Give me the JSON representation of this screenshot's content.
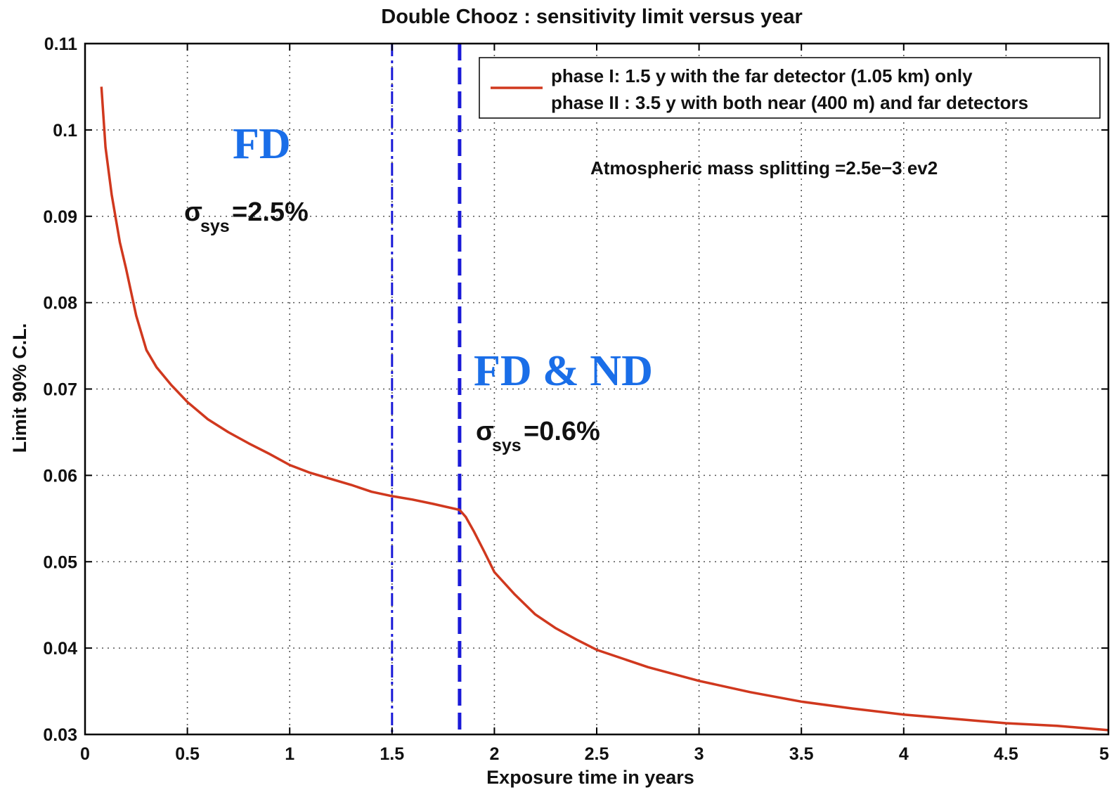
{
  "colors": {
    "curve": "#d0381e",
    "marker": "#1a1ad8",
    "label": "#1a6ee8",
    "grid": "#555555",
    "axis": "#000000"
  },
  "chart_data": {
    "type": "line",
    "title": "Double Chooz : sensitivity limit versus year",
    "xlabel": "Exposure time in years",
    "ylabel": "Limit 90% C.L.",
    "xlim": [
      0,
      5
    ],
    "ylim": [
      0.03,
      0.11
    ],
    "grid": true,
    "legend_position": "top-right",
    "xticks": [
      0,
      0.5,
      1,
      1.5,
      2,
      2.5,
      3,
      3.5,
      4,
      4.5,
      5
    ],
    "xtick_labels": [
      "0",
      "0.5",
      "1",
      "1.5",
      "2",
      "2.5",
      "3",
      "3.5",
      "4",
      "4.5",
      "5"
    ],
    "yticks": [
      0.03,
      0.04,
      0.05,
      0.06,
      0.07,
      0.08,
      0.09,
      0.1,
      0.11
    ],
    "ytick_labels": [
      "0.03",
      "0.04",
      "0.05",
      "0.06",
      "0.07",
      "0.08",
      "0.09",
      "0.1",
      "0.11"
    ],
    "series": [
      {
        "legend_lines": [
          "phase I: 1.5 y with the far detector (1.05 km) only",
          "phase II : 3.5 y with both near (400 m) and far detectors"
        ],
        "x": [
          0.08,
          0.1,
          0.13,
          0.17,
          0.2,
          0.25,
          0.3,
          0.35,
          0.42,
          0.5,
          0.6,
          0.7,
          0.8,
          0.9,
          1.0,
          1.1,
          1.2,
          1.3,
          1.4,
          1.5,
          1.6,
          1.7,
          1.83,
          1.86,
          1.9,
          1.95,
          2.0,
          2.1,
          2.2,
          2.3,
          2.4,
          2.5,
          2.75,
          3.0,
          3.25,
          3.5,
          3.75,
          4.0,
          4.25,
          4.5,
          4.75,
          5.0
        ],
        "y": [
          0.105,
          0.098,
          0.0925,
          0.087,
          0.084,
          0.0785,
          0.0745,
          0.0725,
          0.0705,
          0.0685,
          0.0665,
          0.065,
          0.0637,
          0.0625,
          0.0612,
          0.0603,
          0.0596,
          0.0589,
          0.0581,
          0.0576,
          0.0572,
          0.0567,
          0.056,
          0.0552,
          0.0535,
          0.0512,
          0.0488,
          0.0462,
          0.0439,
          0.0423,
          0.041,
          0.0398,
          0.0378,
          0.0362,
          0.0349,
          0.0338,
          0.033,
          0.0323,
          0.0318,
          0.0313,
          0.031,
          0.0305
        ]
      }
    ],
    "vlines": [
      {
        "x": 1.5,
        "style": "dash-dot"
      },
      {
        "x": 1.83,
        "style": "dashed"
      }
    ],
    "annotations": {
      "fd": "FD",
      "fd_sigma_main": "σ",
      "fd_sigma_sub": "sys",
      "fd_sigma_value": "=2.5%",
      "fdnd": "FD & ND",
      "fdnd_sigma_main": "σ",
      "fdnd_sigma_sub": "sys",
      "fdnd_sigma_value": "=0.6%",
      "mass_splitting": "Atmospheric mass splitting =2.5e−3 ev2"
    }
  }
}
